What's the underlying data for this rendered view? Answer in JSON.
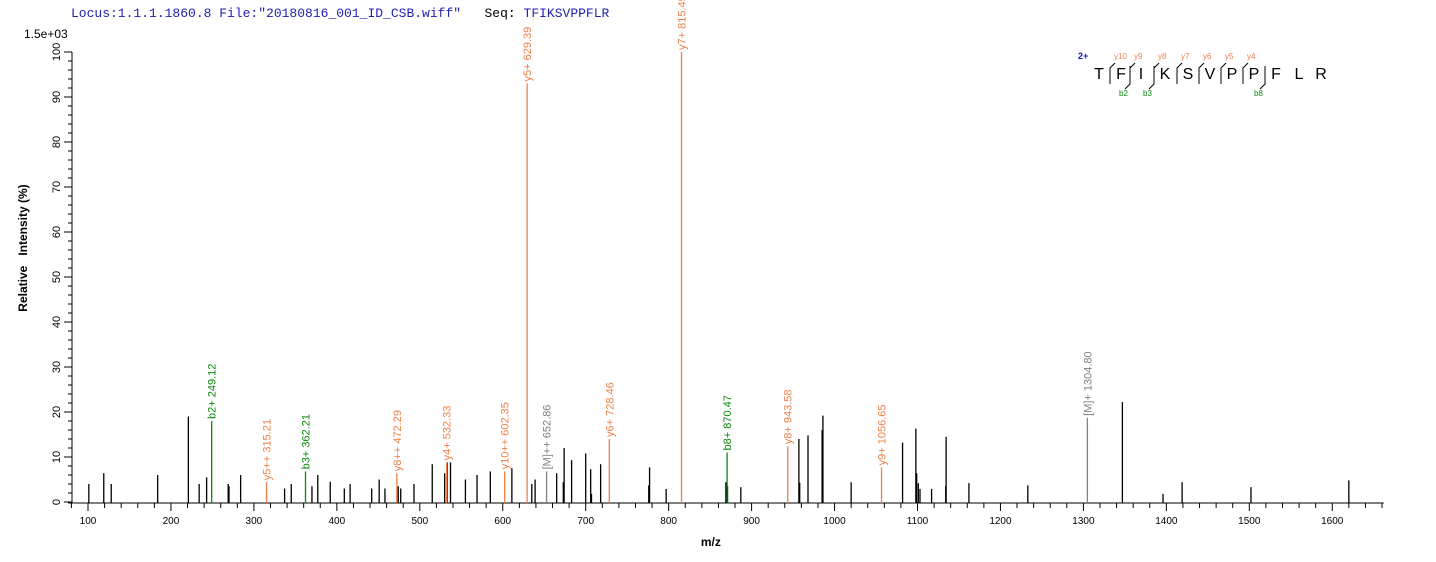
{
  "header": {
    "locus": "Locus:1.1.1.1860.8 File:\"20180816_001_ID_CSB.wiff\"",
    "seq_label": "Seq:",
    "seq_value": "TFIKSVPPFLR"
  },
  "sequence_annotation": {
    "charge": "2+",
    "residues": [
      "T",
      "F",
      "I",
      "K",
      "S",
      "V",
      "P",
      "P",
      "F",
      "L",
      "R"
    ],
    "y_marks": [
      {
        "before": 1,
        "label": "y10"
      },
      {
        "before": 2,
        "label": "y9"
      },
      {
        "before": 3,
        "label": "y8"
      },
      {
        "before": 4,
        "label": "y7"
      },
      {
        "before": 5,
        "label": "y6"
      },
      {
        "before": 6,
        "label": "y5"
      },
      {
        "before": 7,
        "label": "y4"
      }
    ],
    "b_marks": [
      {
        "before": 2,
        "label": "b2"
      },
      {
        "before": 3,
        "label": "b3"
      },
      {
        "before": 8,
        "label": "b8"
      }
    ]
  },
  "chart_data": {
    "type": "bar",
    "scale_label": "1.5e+03",
    "xlabel": "m/z",
    "ylabel": "Relative   Intensity (%)",
    "xlim": [
      76,
      1662
    ],
    "ylim": [
      0,
      100
    ],
    "xticks": [
      100,
      200,
      300,
      400,
      500,
      600,
      700,
      800,
      900,
      1000,
      1100,
      1200,
      1300,
      1400,
      1500,
      1600
    ],
    "yticks": [
      0,
      10,
      20,
      30,
      40,
      50,
      60,
      70,
      80,
      90,
      100
    ],
    "grid": false,
    "colors": {
      "y": "#f0804a",
      "b": "#0a8a0a",
      "M": "#808080",
      "unassigned": "#000000",
      "header": "#1f1fb4",
      "charge": "#1414c8"
    },
    "annotated_peaks": [
      {
        "mz": 249.12,
        "intensity": 18,
        "type": "b",
        "label": "b2+ 249.12"
      },
      {
        "mz": 315.21,
        "intensity": 4.4,
        "type": "y",
        "label": "y5++ 315.21"
      },
      {
        "mz": 362.21,
        "intensity": 6.8,
        "type": "b",
        "label": "b3+ 362.21"
      },
      {
        "mz": 472.29,
        "intensity": 6.4,
        "type": "y",
        "label": "y8++ 472.29"
      },
      {
        "mz": 532.33,
        "intensity": 8.8,
        "type": "y",
        "label": "y4+ 532.33"
      },
      {
        "mz": 602.35,
        "intensity": 6.8,
        "type": "y",
        "label": "y10++ 602.35"
      },
      {
        "mz": 629.39,
        "intensity": 93,
        "type": "y",
        "label": "y5+ 629.39"
      },
      {
        "mz": 652.86,
        "intensity": 6.8,
        "type": "M",
        "label": "[M]++ 652.86"
      },
      {
        "mz": 728.46,
        "intensity": 14,
        "type": "y",
        "label": "y6+ 728.46"
      },
      {
        "mz": 815.49,
        "intensity": 100,
        "type": "y",
        "label": "y7+ 815.49"
      },
      {
        "mz": 870.47,
        "intensity": 11,
        "type": "b",
        "label": "b8+ 870.47"
      },
      {
        "mz": 943.58,
        "intensity": 12.4,
        "type": "y",
        "label": "y8+ 943.58"
      },
      {
        "mz": 1056.65,
        "intensity": 7.7,
        "type": "y",
        "label": "y9+ 1056.65"
      },
      {
        "mz": 1304.8,
        "intensity": 18.7,
        "type": "M",
        "label": "[M]+ 1304.80"
      }
    ],
    "peaks": [
      [
        101,
        4
      ],
      [
        119,
        6.4
      ],
      [
        128,
        4
      ],
      [
        184,
        6
      ],
      [
        221,
        19
      ],
      [
        234,
        4
      ],
      [
        243,
        5.5
      ],
      [
        269,
        4
      ],
      [
        270,
        3.5
      ],
      [
        284,
        6
      ],
      [
        337,
        3
      ],
      [
        345,
        4
      ],
      [
        370,
        3.5
      ],
      [
        377,
        6
      ],
      [
        392,
        4.5
      ],
      [
        409,
        3
      ],
      [
        416,
        4
      ],
      [
        442,
        3
      ],
      [
        451,
        5
      ],
      [
        458,
        3
      ],
      [
        474,
        3.5
      ],
      [
        477,
        3
      ],
      [
        493,
        4
      ],
      [
        515,
        8.4
      ],
      [
        530,
        6.4
      ],
      [
        533,
        8.8
      ],
      [
        537,
        8.8
      ],
      [
        555,
        5
      ],
      [
        569,
        6
      ],
      [
        585,
        6.8
      ],
      [
        611,
        7.5
      ],
      [
        635,
        4
      ],
      [
        639,
        5
      ],
      [
        665,
        6.4
      ],
      [
        673,
        4.4
      ],
      [
        674,
        12
      ],
      [
        683,
        9.3
      ],
      [
        700,
        10.8
      ],
      [
        706,
        7.3
      ],
      [
        707,
        1.8
      ],
      [
        718,
        8.4
      ],
      [
        776,
        3.7
      ],
      [
        777,
        7.7
      ],
      [
        797,
        2.9
      ],
      [
        869,
        4.4
      ],
      [
        871,
        3.5
      ],
      [
        887,
        3.3
      ],
      [
        957,
        14
      ],
      [
        958,
        4.3
      ],
      [
        968,
        14.8
      ],
      [
        985,
        16
      ],
      [
        986,
        19.2
      ],
      [
        1020,
        4.4
      ],
      [
        1082,
        13.2
      ],
      [
        1098,
        16.3
      ],
      [
        1099,
        6.4
      ],
      [
        1101,
        4.2
      ],
      [
        1103,
        2.9
      ],
      [
        1117,
        2.9
      ],
      [
        1134,
        3.5
      ],
      [
        1134.5,
        14.5
      ],
      [
        1162,
        4.2
      ],
      [
        1233,
        3.7
      ],
      [
        1347,
        22.2
      ],
      [
        1396,
        1.8
      ],
      [
        1419,
        4.4
      ],
      [
        1502,
        3.3
      ],
      [
        1620,
        4.8
      ]
    ]
  }
}
